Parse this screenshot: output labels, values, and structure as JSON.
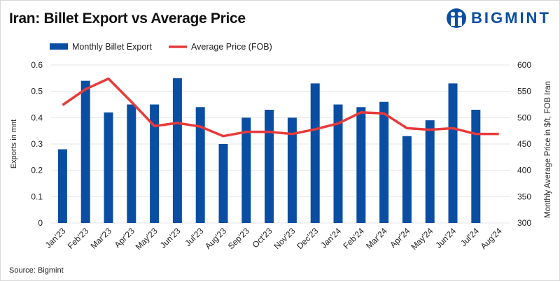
{
  "title": "Iran: Billet Export vs Average Price",
  "logo": "BIGMINT",
  "source": "Source: Bigmint",
  "colors": {
    "bar": "#0a4ea3",
    "line": "#e83a3a",
    "grid": "#e6e6e6"
  },
  "chart_data": {
    "type": "bar+line",
    "title": "Iran: Billet Export vs Average Price",
    "categories": [
      "Jan'23",
      "Feb'23",
      "Mar'23",
      "Apr'23",
      "May'23",
      "Jun'23",
      "Jul'23",
      "Aug'23",
      "Sep'23",
      "Oct'23",
      "Nov'23",
      "Dec'23",
      "Jan'24",
      "Feb'24",
      "Mar'24",
      "Apr'24",
      "May'24",
      "Jun'24",
      "Jul'24",
      "Aug'24"
    ],
    "series": [
      {
        "name": "Monthly Billet Export",
        "type": "bar",
        "axis": "left",
        "values": [
          0.28,
          0.54,
          0.42,
          0.45,
          0.45,
          0.55,
          0.44,
          0.3,
          0.4,
          0.43,
          0.4,
          0.53,
          0.45,
          0.44,
          0.46,
          0.33,
          0.39,
          0.53,
          0.43,
          null
        ]
      },
      {
        "name": "Average Price (FOB)",
        "type": "line",
        "axis": "right",
        "values": [
          524,
          554,
          574,
          530,
          484,
          490,
          483,
          465,
          473,
          473,
          469,
          478,
          489,
          510,
          508,
          480,
          477,
          480,
          469,
          469
        ]
      }
    ],
    "ylabel": "Exports in mnt",
    "y2label": "Monthly Average Price in $/t, FOB Iran",
    "ylim": [
      0,
      0.6
    ],
    "y2lim": [
      300,
      600
    ],
    "yticks": [
      "0",
      "0.1",
      "0.2",
      "0.3",
      "0.4",
      "0.5",
      "0.6"
    ],
    "y2ticks": [
      "300",
      "350",
      "400",
      "450",
      "500",
      "550",
      "600"
    ],
    "grid": true,
    "legend": "top-left"
  }
}
